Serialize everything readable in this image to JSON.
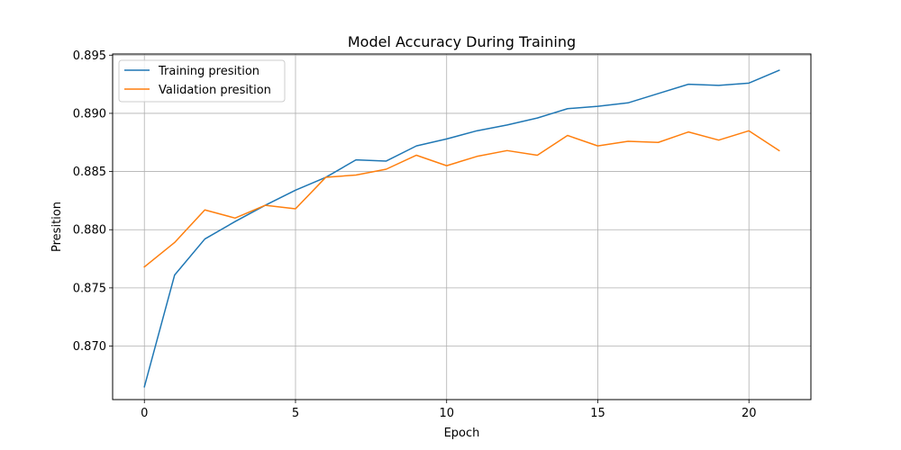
{
  "chart_data": {
    "type": "line",
    "title": "Model Accuracy During Training",
    "xlabel": "Epoch",
    "ylabel": "Presition",
    "xlim": [
      -1.05,
      22.05
    ],
    "ylim": [
      0.8654,
      0.8951
    ],
    "xticks": [
      0,
      5,
      10,
      15,
      20
    ],
    "yticks": [
      0.87,
      0.875,
      0.88,
      0.885,
      0.89,
      0.895
    ],
    "grid": true,
    "legend": "upper left",
    "x": [
      0,
      1,
      2,
      3,
      4,
      5,
      6,
      7,
      8,
      9,
      10,
      11,
      12,
      13,
      14,
      15,
      16,
      17,
      18,
      19,
      20,
      21
    ],
    "series": [
      {
        "name": "Training presition",
        "color": "#1f77b4",
        "values": [
          0.8665,
          0.8761,
          0.8792,
          0.8807,
          0.8821,
          0.8834,
          0.8845,
          0.886,
          0.8859,
          0.8872,
          0.8878,
          0.8885,
          0.889,
          0.8896,
          0.8904,
          0.8906,
          0.8909,
          0.8917,
          0.8925,
          0.8924,
          0.8926,
          0.8937
        ]
      },
      {
        "name": "Validation presition",
        "color": "#ff7f0e",
        "values": [
          0.8768,
          0.8789,
          0.8817,
          0.881,
          0.8821,
          0.8818,
          0.8845,
          0.8847,
          0.8852,
          0.8864,
          0.8855,
          0.8863,
          0.8868,
          0.8864,
          0.8881,
          0.8872,
          0.8876,
          0.8875,
          0.8884,
          0.8877,
          0.8885,
          0.8868
        ]
      }
    ]
  }
}
